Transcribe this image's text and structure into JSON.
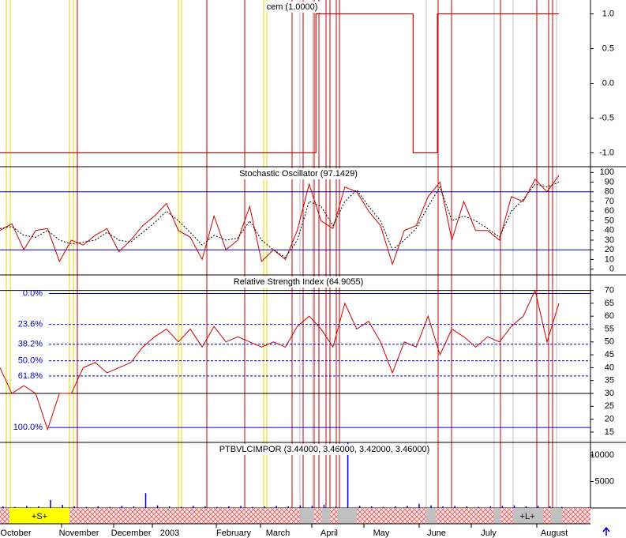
{
  "chart_data": [
    {
      "type": "step",
      "title": "cem (1.0000)",
      "color": "#cc0000",
      "values": [
        -1,
        -1,
        -1,
        -1,
        -1,
        -1,
        -1,
        -1,
        -1,
        -1,
        -1,
        -1,
        -1,
        1,
        1,
        1,
        1,
        -1,
        1,
        1,
        1,
        1,
        1,
        1
      ],
      "ylim": [
        -1.2,
        1.2
      ],
      "yticks": [
        {
          "value": 1,
          "label": "1.0"
        },
        {
          "value": 0.5,
          "label": "0.5"
        },
        {
          "value": 0,
          "label": "0.0"
        },
        {
          "value": -0.5,
          "label": "-0.5"
        },
        {
          "value": -1,
          "label": "-1.0"
        }
      ]
    },
    {
      "type": "line",
      "title": "Stochastic Oscillator (97.1429)",
      "series": [
        {
          "color": "#cc0000",
          "style": "solid",
          "values": [
            40,
            47,
            20,
            40,
            42,
            8,
            30,
            25,
            35,
            42,
            18,
            30,
            45,
            55,
            68,
            40,
            33,
            10,
            55,
            20,
            30,
            65,
            8,
            20,
            10,
            40,
            88,
            50,
            42,
            85,
            80,
            60,
            45,
            5,
            40,
            45,
            75,
            90,
            30,
            70,
            40,
            40,
            30,
            75,
            70,
            93,
            80,
            97
          ]
        },
        {
          "color": "#000000",
          "style": "dotted",
          "values": [
            42,
            44,
            35,
            33,
            40,
            30,
            26,
            28,
            30,
            38,
            30,
            28,
            38,
            48,
            60,
            50,
            38,
            25,
            35,
            30,
            32,
            50,
            30,
            20,
            12,
            30,
            70,
            65,
            45,
            70,
            82,
            65,
            50,
            20,
            30,
            42,
            65,
            85,
            50,
            55,
            50,
            42,
            33,
            60,
            72,
            88,
            85,
            90
          ]
        }
      ],
      "levels": [
        80,
        20
      ],
      "level_color": "#0000aa",
      "ylim": [
        -6,
        106
      ],
      "yticks": [
        100,
        90,
        80,
        70,
        60,
        50,
        40,
        30,
        20,
        10,
        0
      ]
    },
    {
      "type": "line",
      "title": "Relative Strength Index (64.9055)",
      "series": [
        {
          "color": "#cc0000",
          "style": "solid",
          "values": [
            40,
            30,
            33,
            30,
            16,
            30,
            30,
            40,
            42,
            38,
            40,
            42,
            48,
            52,
            55,
            50,
            55,
            48,
            56,
            50,
            52,
            50,
            48,
            50,
            48,
            56,
            60,
            55,
            48,
            65,
            55,
            58,
            50,
            38,
            50,
            48,
            60,
            45,
            55,
            52,
            48,
            52,
            50,
            56,
            60,
            70,
            50,
            65
          ]
        }
      ],
      "levels": [
        70,
        30
      ],
      "level_color": "#000000",
      "fib_levels": [
        {
          "value": 68.8,
          "label": "0.0%"
        },
        {
          "value": 56.8,
          "label": "23.6%"
        },
        {
          "value": 49.1,
          "label": "38.2%"
        },
        {
          "value": 42.7,
          "label": "50.0%"
        },
        {
          "value": 36.8,
          "label": "61.8%"
        },
        {
          "value": 16.8,
          "label": "100.0%"
        }
      ],
      "ylim": [
        11,
        76
      ],
      "yticks": [
        70,
        65,
        60,
        55,
        50,
        45,
        40,
        35,
        30,
        25,
        20,
        15
      ]
    },
    {
      "type": "bar",
      "title": "PTBVLCIMPOR (3.44000, 3.46000, 3.42000, 3.46000)",
      "color": "#0000cc",
      "values": [
        300,
        200,
        400,
        300,
        1500,
        600,
        300,
        200,
        300,
        200,
        400,
        300,
        2800,
        500,
        300,
        200,
        400,
        300,
        200,
        300,
        400,
        200,
        300,
        400,
        300,
        500,
        400,
        600,
        300,
        12400,
        400,
        300,
        200,
        300,
        400,
        800,
        500,
        300,
        400,
        300,
        200,
        300,
        400,
        500,
        300,
        400,
        300,
        200
      ],
      "ylim": [
        0,
        12400
      ],
      "yticks": [
        10000,
        5000
      ]
    }
  ],
  "signals": [
    "+S+",
    "+L+"
  ],
  "months": [
    "October",
    "November",
    "December",
    "2003",
    "February",
    "March",
    "April",
    "May",
    "June",
    "July",
    "August"
  ]
}
